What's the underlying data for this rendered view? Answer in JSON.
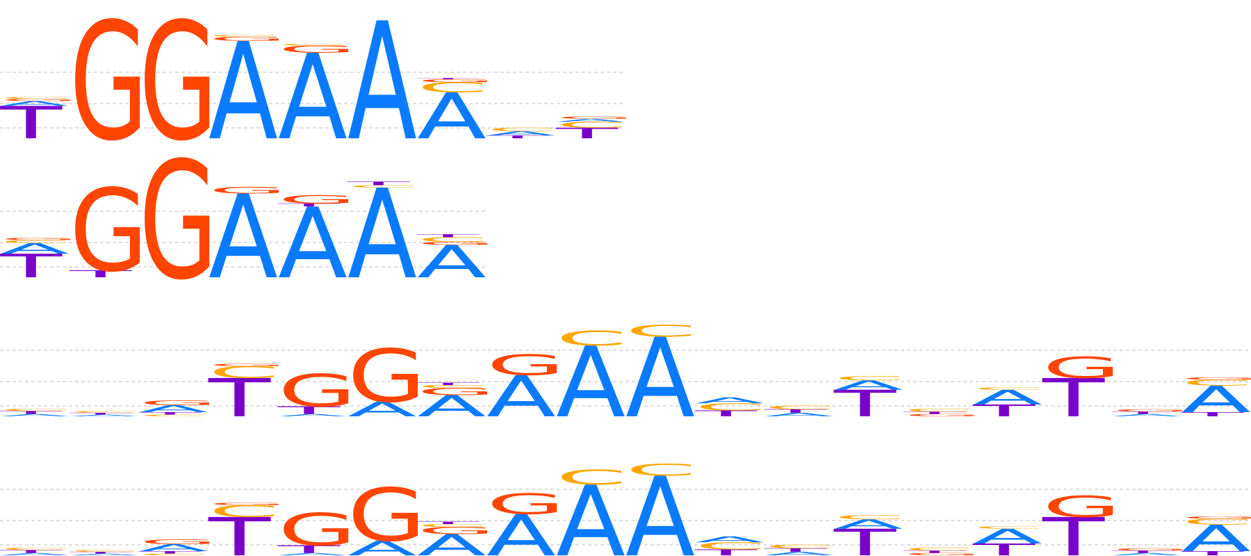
{
  "colors": {
    "A": "#0a7bff",
    "C": "#ffa500",
    "G": "#ff4500",
    "T": "#7a00cc",
    "grid": "#bdbdbd"
  },
  "logos": [
    {
      "name": "logo-1",
      "columns": [
        [
          [
            "C",
            0.03
          ],
          [
            "G",
            0.04
          ],
          [
            "A",
            0.08
          ],
          [
            "T",
            0.55
          ]
        ],
        [
          [
            "G",
            2.0
          ]
        ],
        [
          [
            "G",
            2.0
          ]
        ],
        [
          [
            "C",
            0.03
          ],
          [
            "G",
            0.07
          ],
          [
            "A",
            1.65
          ]
        ],
        [
          [
            "C",
            0.03
          ],
          [
            "G",
            0.12
          ],
          [
            "A",
            1.45
          ]
        ],
        [
          [
            "A",
            2.0
          ]
        ],
        [
          [
            "T",
            0.02
          ],
          [
            "G",
            0.05
          ],
          [
            "C",
            0.17
          ],
          [
            "A",
            0.78
          ]
        ],
        [
          [
            "C",
            0.06
          ],
          [
            "A",
            0.07
          ],
          [
            "T",
            0.05
          ]
        ],
        [
          [
            "G",
            0.04
          ],
          [
            "A",
            0.05
          ],
          [
            "C",
            0.1
          ],
          [
            "T",
            0.18
          ]
        ]
      ]
    },
    {
      "name": "logo-2",
      "columns": [
        [
          [
            "G",
            0.04
          ],
          [
            "C",
            0.05
          ],
          [
            "A",
            0.18
          ],
          [
            "T",
            0.4
          ]
        ],
        [
          [
            "G",
            1.4
          ],
          [
            "T",
            0.12
          ]
        ],
        [
          [
            "G",
            2.0
          ]
        ],
        [
          [
            "G",
            0.11
          ],
          [
            "A",
            1.42
          ]
        ],
        [
          [
            "G",
            0.14
          ],
          [
            "T",
            0.05
          ],
          [
            "A",
            1.2
          ]
        ],
        [
          [
            "T",
            0.06
          ],
          [
            "C",
            0.04
          ],
          [
            "A",
            1.52
          ]
        ],
        [
          [
            "T",
            0.05
          ],
          [
            "C",
            0.08
          ],
          [
            "G",
            0.05
          ],
          [
            "A",
            0.55
          ]
        ]
      ]
    },
    {
      "name": "logo-3",
      "columns": [
        [
          [
            "C",
            0.04
          ],
          [
            "T",
            0.05
          ],
          [
            "A",
            0.04
          ]
        ],
        [
          [
            "C",
            0.03
          ],
          [
            "T",
            0.03
          ],
          [
            "A",
            0.03
          ]
        ],
        [
          [
            "G",
            0.08
          ],
          [
            "A",
            0.12
          ],
          [
            "T",
            0.04
          ],
          [
            "C",
            0.03
          ]
        ],
        [
          [
            "G",
            0.04
          ],
          [
            "C",
            0.2
          ],
          [
            "T",
            0.65
          ]
        ],
        [
          [
            "G",
            0.55
          ],
          [
            "T",
            0.13
          ],
          [
            "A",
            0.04
          ]
        ],
        [
          [
            "G",
            0.9
          ],
          [
            "A",
            0.25
          ]
        ],
        [
          [
            "T",
            0.04
          ],
          [
            "C",
            0.05
          ],
          [
            "G",
            0.12
          ],
          [
            "A",
            0.36
          ]
        ],
        [
          [
            "G",
            0.35
          ],
          [
            "A",
            0.7
          ]
        ],
        [
          [
            "C",
            0.25
          ],
          [
            "A",
            1.2
          ]
        ],
        [
          [
            "C",
            0.2
          ],
          [
            "A",
            1.35
          ]
        ],
        [
          [
            "A",
            0.1
          ],
          [
            "C",
            0.12
          ],
          [
            "T",
            0.1
          ]
        ],
        [
          [
            "C",
            0.06
          ],
          [
            "T",
            0.06
          ],
          [
            "A",
            0.06
          ]
        ],
        [
          [
            "C",
            0.07
          ],
          [
            "A",
            0.16
          ],
          [
            "T",
            0.45
          ]
        ],
        [
          [
            "C",
            0.05
          ],
          [
            "T",
            0.04
          ],
          [
            "G",
            0.04
          ]
        ],
        [
          [
            "C",
            0.04
          ],
          [
            "A",
            0.25
          ],
          [
            "T",
            0.2
          ]
        ],
        [
          [
            "G",
            0.36
          ],
          [
            "T",
            0.65
          ]
        ],
        [
          [
            "G",
            0.04
          ],
          [
            "T",
            0.04
          ],
          [
            "A",
            0.04
          ]
        ],
        [
          [
            "G",
            0.04
          ],
          [
            "C",
            0.1
          ],
          [
            "A",
            0.45
          ],
          [
            "T",
            0.07
          ]
        ]
      ]
    },
    {
      "name": "logo-4",
      "columns": [
        [
          [
            "C",
            0.04
          ],
          [
            "T",
            0.05
          ],
          [
            "A",
            0.04
          ]
        ],
        [
          [
            "C",
            0.03
          ],
          [
            "T",
            0.03
          ],
          [
            "A",
            0.03
          ]
        ],
        [
          [
            "G",
            0.08
          ],
          [
            "A",
            0.12
          ],
          [
            "T",
            0.04
          ],
          [
            "C",
            0.03
          ]
        ],
        [
          [
            "G",
            0.04
          ],
          [
            "C",
            0.2
          ],
          [
            "T",
            0.65
          ]
        ],
        [
          [
            "G",
            0.55
          ],
          [
            "T",
            0.13
          ],
          [
            "A",
            0.04
          ]
        ],
        [
          [
            "G",
            0.9
          ],
          [
            "A",
            0.25
          ]
        ],
        [
          [
            "T",
            0.04
          ],
          [
            "C",
            0.05
          ],
          [
            "G",
            0.12
          ],
          [
            "A",
            0.36
          ]
        ],
        [
          [
            "G",
            0.35
          ],
          [
            "A",
            0.7
          ]
        ],
        [
          [
            "C",
            0.25
          ],
          [
            "A",
            1.2
          ]
        ],
        [
          [
            "C",
            0.2
          ],
          [
            "A",
            1.35
          ]
        ],
        [
          [
            "A",
            0.1
          ],
          [
            "C",
            0.12
          ],
          [
            "T",
            0.1
          ]
        ],
        [
          [
            "C",
            0.06
          ],
          [
            "T",
            0.06
          ],
          [
            "A",
            0.06
          ]
        ],
        [
          [
            "C",
            0.07
          ],
          [
            "A",
            0.16
          ],
          [
            "T",
            0.45
          ]
        ],
        [
          [
            "C",
            0.05
          ],
          [
            "T",
            0.04
          ],
          [
            "G",
            0.04
          ]
        ],
        [
          [
            "C",
            0.04
          ],
          [
            "A",
            0.25
          ],
          [
            "T",
            0.2
          ]
        ],
        [
          [
            "G",
            0.36
          ],
          [
            "T",
            0.65
          ]
        ],
        [
          [
            "G",
            0.04
          ],
          [
            "T",
            0.04
          ],
          [
            "A",
            0.04
          ]
        ],
        [
          [
            "G",
            0.04
          ],
          [
            "C",
            0.1
          ],
          [
            "A",
            0.45
          ],
          [
            "T",
            0.07
          ]
        ]
      ]
    }
  ]
}
